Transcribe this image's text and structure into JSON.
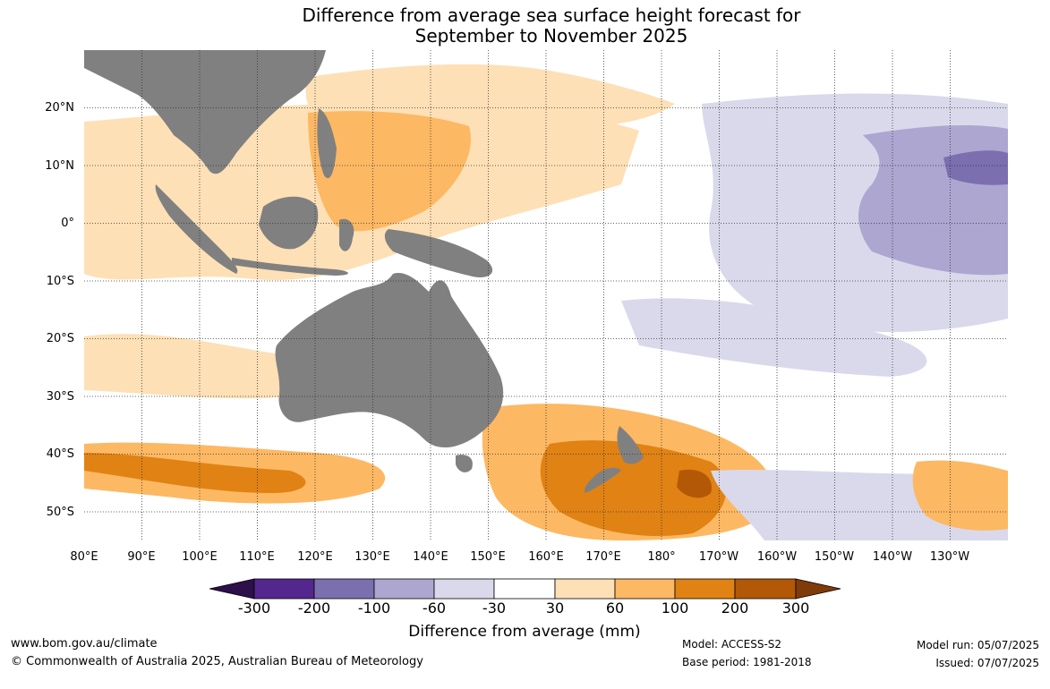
{
  "title_line1": "Difference from average sea surface height forecast for",
  "title_line2": "September to November 2025",
  "lat_labels": [
    "20°N",
    "10°N",
    "0°",
    "10°S",
    "20°S",
    "30°S",
    "40°S",
    "50°S"
  ],
  "lon_labels": [
    "80°E",
    "90°E",
    "100°E",
    "110°E",
    "120°E",
    "130°E",
    "140°E",
    "150°E",
    "160°E",
    "170°E",
    "180°",
    "170°W",
    "160°W",
    "150°W",
    "140°W",
    "130°W"
  ],
  "colorbar": {
    "ticks": [
      "-300",
      "-200",
      "-100",
      "-60",
      "-30",
      "30",
      "60",
      "100",
      "200",
      "300"
    ],
    "colors": [
      "#2d0f4a",
      "#54278f",
      "#7b6fb0",
      "#aca6d0",
      "#d9d9eb",
      "#ffffff",
      "#fee0b6",
      "#fdb863",
      "#e08214",
      "#b35806",
      "#7f3b08"
    ],
    "label": "Difference from average (mm)"
  },
  "footer": {
    "website": "www.bom.gov.au/climate",
    "copyright": "© Commonwealth of Australia 2025, Australian Bureau of Meteorology",
    "model": "Model: ACCESS-S2",
    "base_period": "Base period: 1981-2018",
    "model_run": "Model run: 05/07/2025",
    "issued": "Issued: 07/07/2025"
  }
}
